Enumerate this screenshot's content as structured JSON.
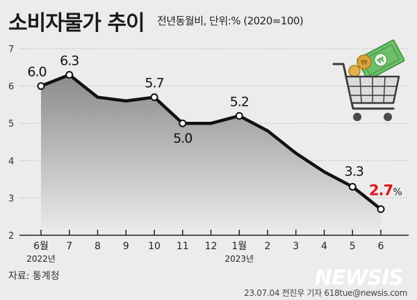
{
  "title": "소비자물가 추이",
  "subtitle": "전년동월비, 단위:% (2020=100)",
  "source": "자료: 통계청",
  "credit": "23.07.04 전진우 기자 618tue@newsis.com",
  "watermark": "NEWSIS",
  "colors": {
    "line": "#111111",
    "highlight": "#e0161d",
    "area_top": "#8c8c8c",
    "area_bottom": "#ececec",
    "grid": "#bdbdbd"
  },
  "chart_data": {
    "type": "area",
    "categories": [
      "6월",
      "7",
      "8",
      "9",
      "10",
      "11",
      "12",
      "1월",
      "2",
      "3",
      "4",
      "5",
      "6"
    ],
    "year_labels": [
      {
        "index": 0,
        "label": "2022년"
      },
      {
        "index": 7,
        "label": "2023년"
      }
    ],
    "series": [
      {
        "values": [
          6.0,
          6.3,
          5.7,
          5.6,
          5.7,
          5.0,
          5.0,
          5.2,
          4.8,
          4.2,
          3.7,
          3.3,
          2.7
        ]
      }
    ],
    "data_labels": [
      {
        "index": 0,
        "text": "6.0"
      },
      {
        "index": 1,
        "text": "6.3"
      },
      {
        "index": 4,
        "text": "5.7"
      },
      {
        "index": 5,
        "text": "5.0"
      },
      {
        "index": 7,
        "text": "5.2"
      },
      {
        "index": 11,
        "text": "3.3"
      },
      {
        "index": 12,
        "text": "2.7",
        "unit": "%",
        "highlight": true
      }
    ],
    "marked_points": [
      0,
      1,
      4,
      5,
      7,
      11,
      12
    ],
    "ylim": [
      2,
      7
    ],
    "yticks": [
      2,
      3,
      4,
      5,
      6,
      7
    ],
    "grid": true,
    "legend": "none"
  },
  "illustration": "shopping-cart-with-money-icon"
}
